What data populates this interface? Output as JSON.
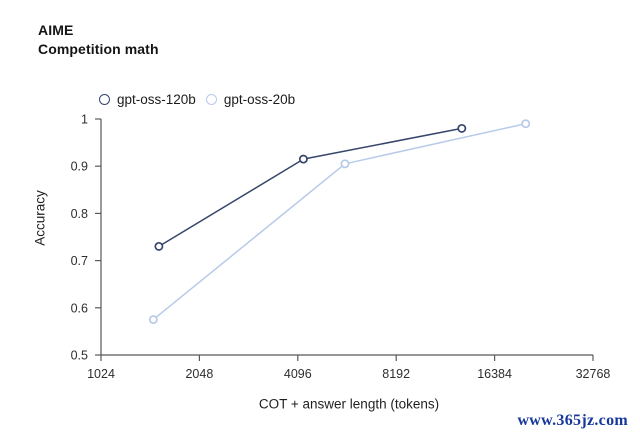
{
  "header": {
    "title_line1": "AIME",
    "title_line2": "Competition math"
  },
  "legend": [
    {
      "label": "gpt-oss-120b",
      "color": "#36456b"
    },
    {
      "label": "gpt-oss-20b",
      "color": "#b8cae9"
    }
  ],
  "chart_data": {
    "type": "line",
    "title": "AIME — Competition math",
    "xlabel": "COT + answer length (tokens)",
    "ylabel": "Accuracy",
    "x_scale": "log2",
    "xlim": [
      1024,
      32768
    ],
    "ylim": [
      0.5,
      1
    ],
    "grid": false,
    "legend_position": "top-left",
    "axis_color": "#58585a",
    "tick_text_color": "#2e2e2e",
    "x_ticks": [
      {
        "value": 1024,
        "label": "1024"
      },
      {
        "value": 2048,
        "label": "2048"
      },
      {
        "value": 4096,
        "label": "4096"
      },
      {
        "value": 8192,
        "label": "8192"
      },
      {
        "value": 16384,
        "label": "16384"
      },
      {
        "value": 32768,
        "label": "32768"
      }
    ],
    "y_ticks": [
      {
        "value": 0.5,
        "label": "0.5"
      },
      {
        "value": 0.6,
        "label": "0.6"
      },
      {
        "value": 0.7,
        "label": "0.7"
      },
      {
        "value": 0.8,
        "label": "0.8"
      },
      {
        "value": 0.9,
        "label": "0.9"
      },
      {
        "value": 1.0,
        "label": "1"
      }
    ],
    "series": [
      {
        "name": "gpt-oss-120b",
        "color": "#36456b",
        "points": [
          {
            "x": 1540,
            "y": 0.73
          },
          {
            "x": 4260,
            "y": 0.915
          },
          {
            "x": 13000,
            "y": 0.98
          }
        ]
      },
      {
        "name": "gpt-oss-20b",
        "color": "#b8cae9",
        "points": [
          {
            "x": 1480,
            "y": 0.575
          },
          {
            "x": 5710,
            "y": 0.905
          },
          {
            "x": 20400,
            "y": 0.99
          }
        ]
      }
    ]
  },
  "watermark": {
    "text": "www.365jz.com",
    "color": "#16389b"
  }
}
